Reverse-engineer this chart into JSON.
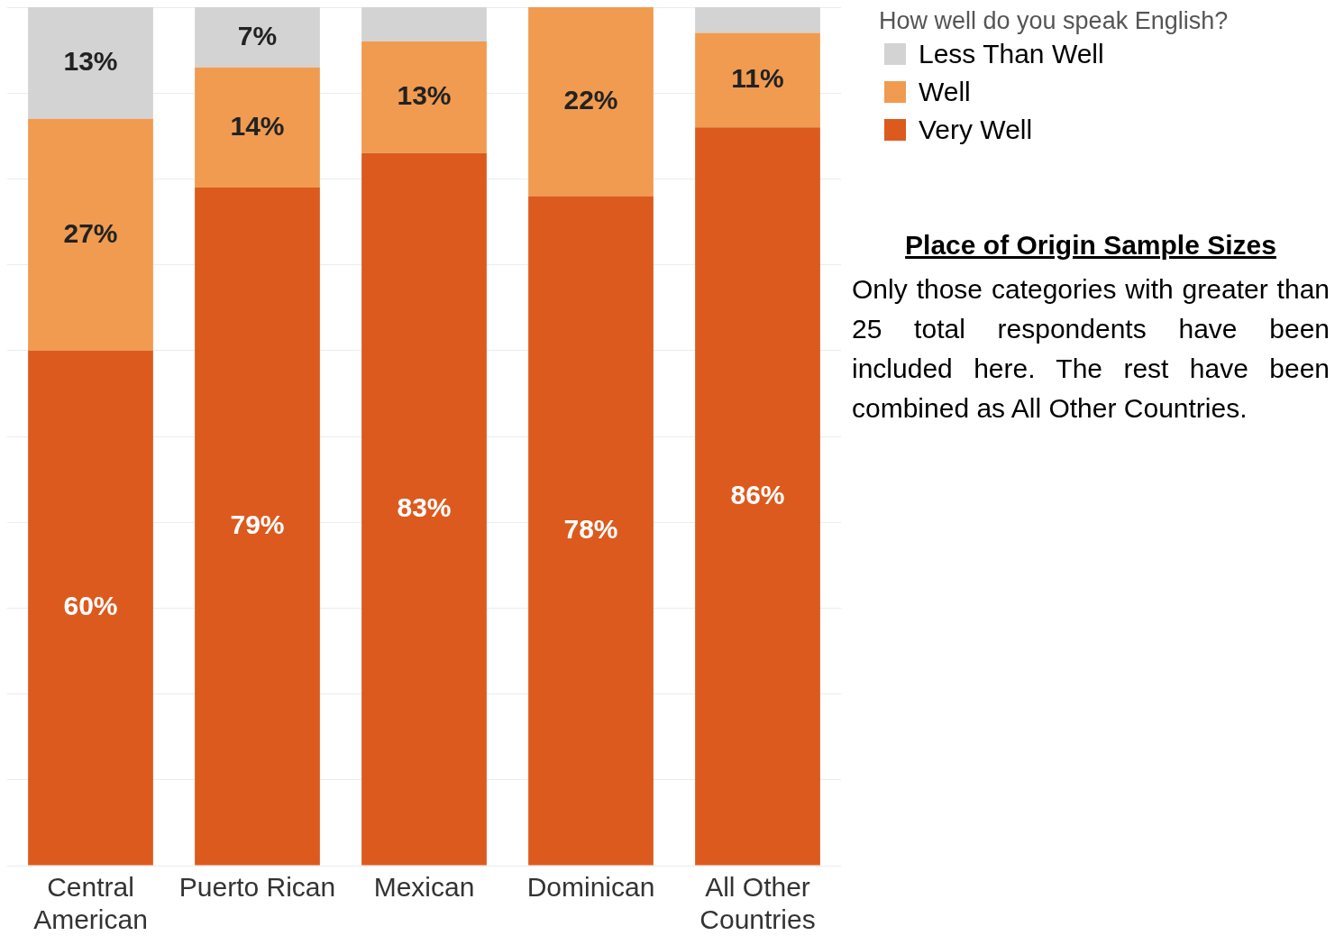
{
  "chart_data": {
    "type": "bar",
    "stacked": true,
    "categories": [
      "Central American",
      "Puerto Rican",
      "Mexican",
      "Dominican",
      "All Other Countries"
    ],
    "series": [
      {
        "name": "Very Well",
        "color": "#dc5a1e",
        "values": [
          60,
          79,
          83,
          78,
          86
        ],
        "value_labels": [
          "60%",
          "79%",
          "83%",
          "78%",
          "86%"
        ]
      },
      {
        "name": "Well",
        "color": "#f09b50",
        "values": [
          27,
          14,
          13,
          22,
          11
        ],
        "value_labels": [
          "27%",
          "14%",
          "13%",
          "22%",
          "11%"
        ]
      },
      {
        "name": "Less Than Well",
        "color": "#d3d3d3",
        "values": [
          13,
          7,
          4,
          0,
          3
        ],
        "value_labels": [
          "13%",
          "7%",
          null,
          null,
          null
        ]
      }
    ],
    "ylim": [
      0,
      100
    ],
    "yticks": [
      {
        "value": 0,
        "label": null
      },
      {
        "value": 10,
        "label": null
      },
      {
        "value": 20,
        "label": null
      },
      {
        "value": 30,
        "label": null
      },
      {
        "value": 40,
        "label": null
      },
      {
        "value": 50,
        "label": null
      },
      {
        "value": 60,
        "label": null
      },
      {
        "value": 70,
        "label": null
      },
      {
        "value": 80,
        "label": null
      },
      {
        "value": 90,
        "label": null
      },
      {
        "value": 100,
        "label": null
      }
    ],
    "tick_labels": "x",
    "grid": "y",
    "legend": "right",
    "legend_title": "How well do you speak English?",
    "annotations": [
      "Place of Origin Sample Sizes",
      "Only those categories with greater than 25 total respondents have been included here. The rest have been combined as All Other Countries."
    ]
  }
}
